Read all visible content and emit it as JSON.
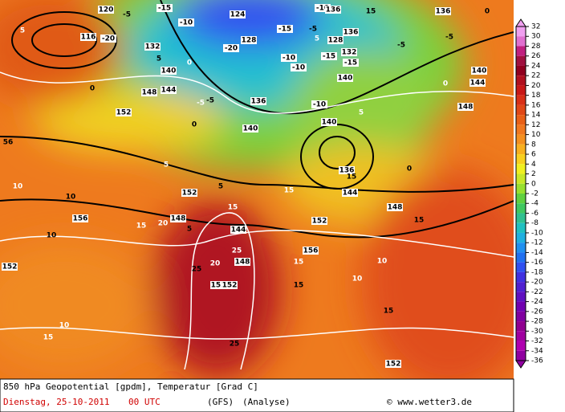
{
  "map": {
    "labels": [
      "120",
      "-5",
      "-15",
      "-10",
      "124",
      "-10",
      "136",
      "15",
      "136",
      "0",
      "5",
      "116",
      "-20",
      "-20",
      "128",
      "132",
      "-15",
      "-5",
      "5",
      "128",
      "136",
      "-10",
      "-15",
      "-5",
      "132",
      "-15",
      "-10",
      "140",
      "0",
      "140",
      "144",
      "-5",
      "140",
      "148",
      "144",
      "0",
      "-5",
      "136",
      "140",
      "-10",
      "140",
      "5",
      "148",
      "152",
      "0",
      "0",
      "5",
      "-5",
      "136",
      "0",
      "5",
      "56",
      "10",
      "10",
      "152",
      "144",
      "156",
      "5",
      "15",
      "10",
      "15",
      "148",
      "20",
      "5",
      "15",
      "144",
      "152",
      "148",
      "10",
      "15",
      "25",
      "156",
      "20",
      "25",
      "15",
      "15",
      "148",
      "152",
      "10",
      "152",
      "152",
      "15",
      "10",
      "15",
      "15",
      "25",
      "152"
    ],
    "legend": {
      "ticks": [
        32,
        30,
        28,
        26,
        24,
        22,
        20,
        18,
        16,
        14,
        12,
        10,
        8,
        6,
        4,
        2,
        0,
        -2,
        -4,
        -6,
        -8,
        -10,
        -12,
        -14,
        -16,
        -18,
        -20,
        -22,
        -24,
        -26,
        -28,
        -30,
        -32,
        -34,
        -36
      ]
    },
    "footer": {
      "line1": "850 hPa Geopotential [gpdm], Temperatur [Grad C]",
      "date": "Dienstag, 25-10-2011",
      "time": "00 UTC",
      "model": "(GFS)",
      "run": "(Analyse)",
      "credit": "© www.wetter3.de"
    }
  }
}
